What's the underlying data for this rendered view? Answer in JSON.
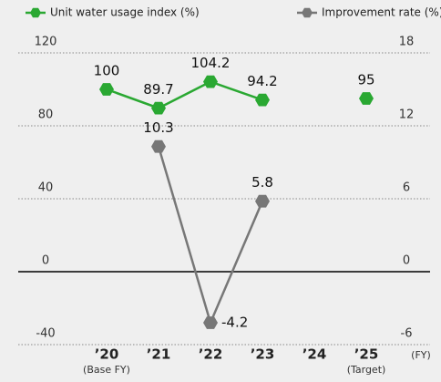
{
  "chart_data": {
    "type": "line",
    "categories": [
      "’20",
      "’21",
      "’22",
      "’23",
      "’24",
      "’25"
    ],
    "category_notes": [
      "(Base FY)",
      null,
      null,
      null,
      null,
      "(Target)"
    ],
    "xlabel": "(FY)",
    "series": [
      {
        "name": "Unit water usage index (%)",
        "color": "#2aa832",
        "values": [
          100,
          89.7,
          104.2,
          94.2,
          null,
          95
        ]
      },
      {
        "name": "Improvement rate (%)",
        "color": "#777777",
        "axis": "y2",
        "values": [
          null,
          10.3,
          -4.2,
          5.8,
          null,
          null
        ]
      }
    ],
    "ylim": [
      -40,
      120
    ],
    "yticks": [
      -40,
      0,
      40,
      80,
      120
    ],
    "y2lim": [
      -6,
      18
    ],
    "y2ticks": [
      -6,
      0,
      6,
      12,
      18
    ],
    "grid": true
  }
}
